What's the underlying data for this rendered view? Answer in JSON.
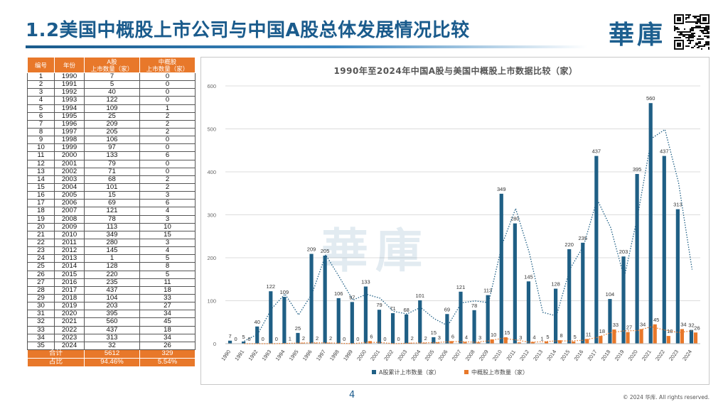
{
  "header": {
    "title": "1.2美国中概股上市公司与中国A股总体发展情况比较",
    "logo": "華庫"
  },
  "table": {
    "headers": [
      "编号",
      "年份",
      "A股\n上市数量（家）",
      "中概股\n上市数量（家）"
    ],
    "rows": [
      [
        "1",
        "1990",
        "7",
        "0"
      ],
      [
        "2",
        "1991",
        "5",
        "0"
      ],
      [
        "3",
        "1992",
        "40",
        "0"
      ],
      [
        "4",
        "1993",
        "122",
        "0"
      ],
      [
        "5",
        "1994",
        "109",
        "1"
      ],
      [
        "6",
        "1995",
        "25",
        "2"
      ],
      [
        "7",
        "1996",
        "209",
        "2"
      ],
      [
        "8",
        "1997",
        "205",
        "2"
      ],
      [
        "9",
        "1998",
        "106",
        "0"
      ],
      [
        "10",
        "1999",
        "97",
        "0"
      ],
      [
        "11",
        "2000",
        "133",
        "6"
      ],
      [
        "12",
        "2001",
        "79",
        "0"
      ],
      [
        "13",
        "2002",
        "71",
        "0"
      ],
      [
        "14",
        "2003",
        "68",
        "2"
      ],
      [
        "15",
        "2004",
        "101",
        "2"
      ],
      [
        "16",
        "2005",
        "15",
        "3"
      ],
      [
        "17",
        "2006",
        "69",
        "6"
      ],
      [
        "18",
        "2007",
        "121",
        "4"
      ],
      [
        "19",
        "2008",
        "78",
        "3"
      ],
      [
        "20",
        "2009",
        "113",
        "10"
      ],
      [
        "21",
        "2010",
        "349",
        "15"
      ],
      [
        "22",
        "2011",
        "280",
        "3"
      ],
      [
        "23",
        "2012",
        "145",
        "4"
      ],
      [
        "24",
        "2013",
        "1",
        "5"
      ],
      [
        "25",
        "2014",
        "128",
        "8"
      ],
      [
        "26",
        "2015",
        "220",
        "5"
      ],
      [
        "27",
        "2016",
        "235",
        "11"
      ],
      [
        "28",
        "2017",
        "437",
        "18"
      ],
      [
        "29",
        "2018",
        "104",
        "33"
      ],
      [
        "30",
        "2019",
        "203",
        "27"
      ],
      [
        "31",
        "2020",
        "395",
        "34"
      ],
      [
        "32",
        "2021",
        "560",
        "45"
      ],
      [
        "33",
        "2022",
        "437",
        "18"
      ],
      [
        "34",
        "2023",
        "313",
        "34"
      ],
      [
        "35",
        "2024",
        "32",
        "26"
      ]
    ],
    "total": {
      "label": "合计",
      "a": "5612",
      "b": "329"
    },
    "ratio": {
      "label": "占比",
      "a": "94.46%",
      "b": "5.54%"
    }
  },
  "chart_data": {
    "type": "bar",
    "title": "1990年至2024年中国A股与美国中概股上市数据比较（家）",
    "categories": [
      "1990",
      "1991",
      "1992",
      "1993",
      "1994",
      "1995",
      "1996",
      "1997",
      "1998",
      "1999",
      "2000",
      "2001",
      "2002",
      "2003",
      "2004",
      "2005",
      "2006",
      "2007",
      "2008",
      "2009",
      "2010",
      "2011",
      "2012",
      "2013",
      "2014",
      "2015",
      "2016",
      "2017",
      "2018",
      "2019",
      "2020",
      "2021",
      "2022",
      "2023",
      "2024"
    ],
    "series": [
      {
        "name": "A股累计上市数量（家）",
        "color": "#1f5f85",
        "values": [
          7,
          5,
          40,
          122,
          109,
          25,
          209,
          205,
          106,
          97,
          133,
          79,
          71,
          68,
          101,
          15,
          69,
          121,
          78,
          113,
          349,
          280,
          145,
          1,
          128,
          220,
          235,
          437,
          104,
          203,
          395,
          560,
          437,
          313,
          32
        ]
      },
      {
        "name": "中概股上市数量（家）",
        "color": "#e8782a",
        "values": [
          0,
          0,
          0,
          0,
          1,
          2,
          2,
          2,
          0,
          0,
          6,
          0,
          0,
          2,
          2,
          3,
          6,
          4,
          3,
          10,
          15,
          3,
          4,
          5,
          8,
          5,
          11,
          18,
          33,
          27,
          34,
          45,
          18,
          34,
          26
        ]
      }
    ],
    "trendlines": "dotted moving-average trendline for each series",
    "ylim": [
      0,
      600
    ],
    "yticks": [
      0,
      100,
      200,
      300,
      400,
      500,
      600
    ],
    "grid": true,
    "legend": "bottom"
  },
  "footer": {
    "page": "4",
    "copyright": "© 2024 华库. All rights reserved."
  },
  "watermark": "華庫"
}
